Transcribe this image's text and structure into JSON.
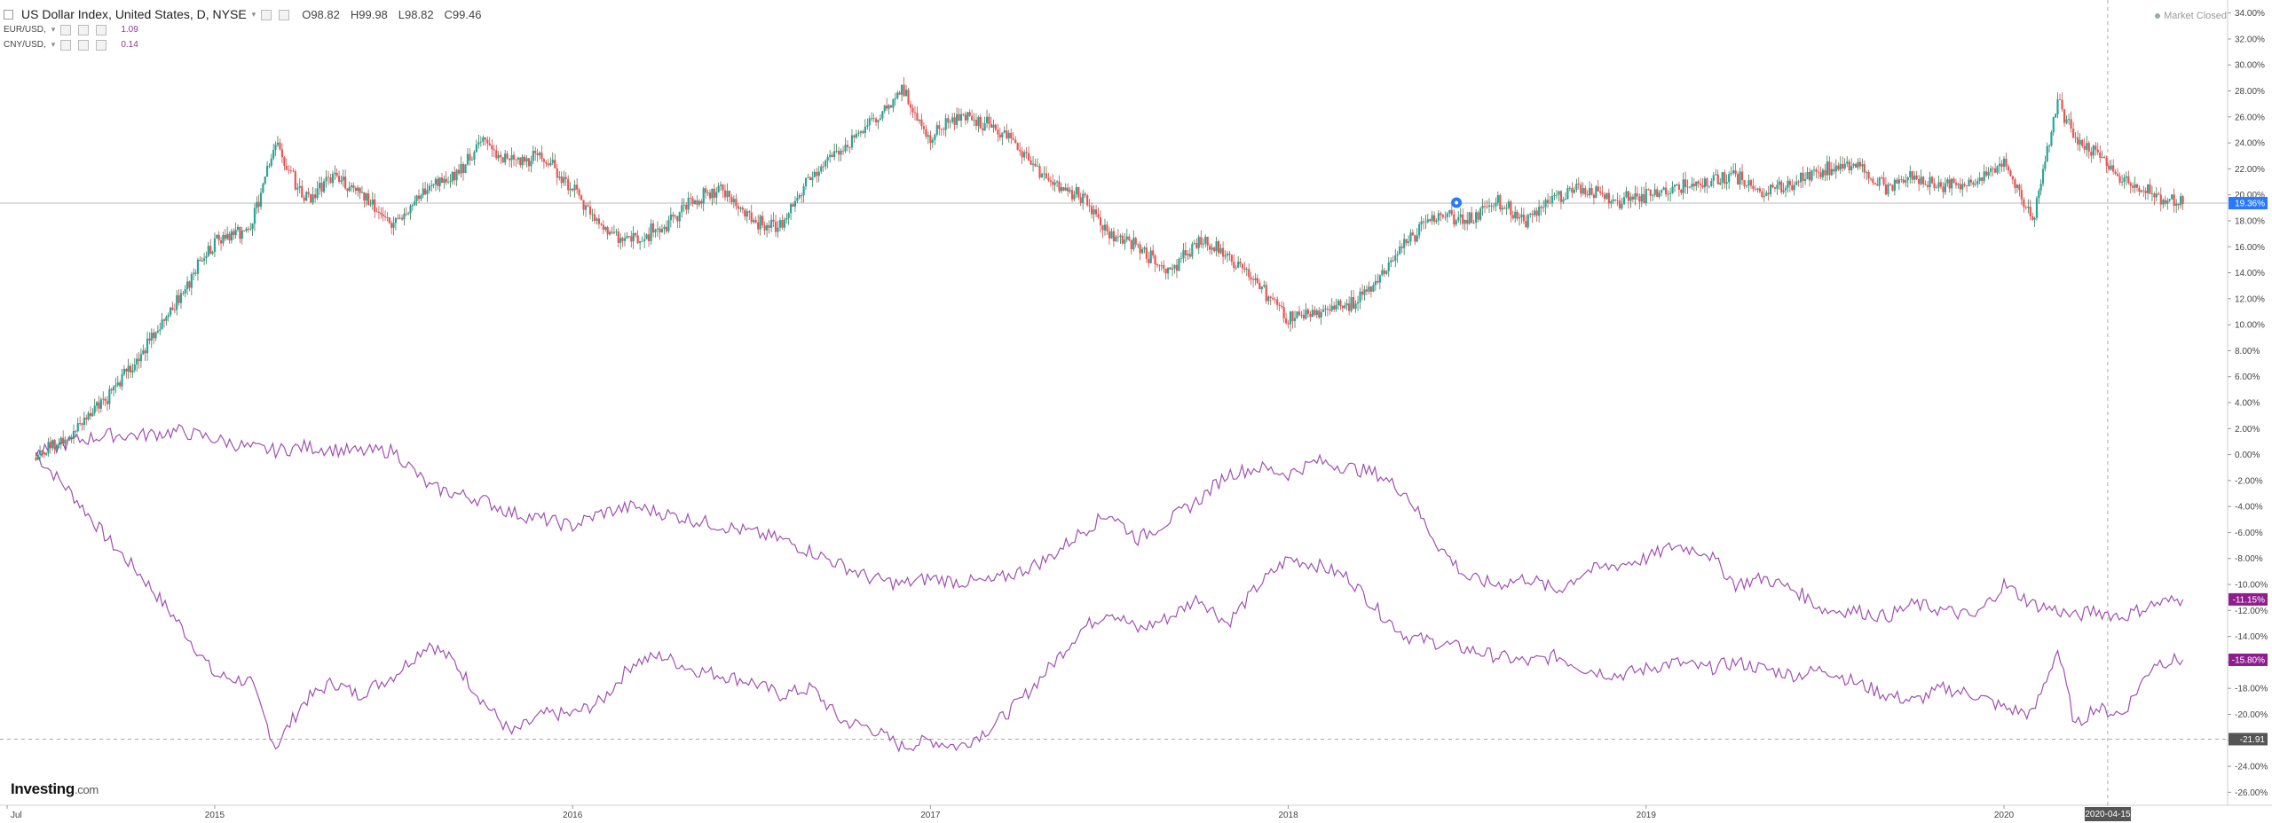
{
  "legend": {
    "main": {
      "title": "US Dollar Index, United States, D, NYSE",
      "o": "O98.82",
      "h": "H99.98",
      "l": "L98.82",
      "c": "C99.46"
    },
    "series2": {
      "name": "EUR/USD,",
      "value": "1.09"
    },
    "series3": {
      "name": "CNY/USD,",
      "value": "0.14"
    }
  },
  "market_status": "Market Closed",
  "logo": {
    "bold": "Investing",
    "suffix": ".com"
  },
  "colors": {
    "up": "#26a69a",
    "down": "#ef5350",
    "line_purple": "#a050b0",
    "badge_blue": "#2979ff",
    "badge_purple": "#8e1e8e",
    "badge_gray": "#555555",
    "grid": "#e6e6e6"
  },
  "chart_data": {
    "type": "line",
    "x_axis": {
      "ticks": [
        "Jul",
        "2015",
        "2016",
        "2017",
        "2018",
        "2019",
        "2020"
      ],
      "crosshair_label": "2020-04-15"
    },
    "y_axis": {
      "unit": "%",
      "range": [
        -27,
        35
      ],
      "ticks": [
        "34.00%",
        "32.00%",
        "30.00%",
        "28.00%",
        "26.00%",
        "24.00%",
        "22.00%",
        "20.00%",
        "18.00%",
        "16.00%",
        "14.00%",
        "12.00%",
        "10.00%",
        "8.00%",
        "6.00%",
        "4.00%",
        "2.00%",
        "0.00%",
        "-2.00%",
        "-4.00%",
        "-6.00%",
        "-8.00%",
        "-10.00%",
        "-12.00%",
        "-14.00%",
        "-16.00%",
        "-18.00%",
        "-20.00%",
        "-22.00%",
        "-24.00%",
        "-26.00%"
      ]
    },
    "last_value_labels": [
      "19.36%",
      "-11.15%",
      "-15.80%",
      "-21.91"
    ],
    "series": [
      {
        "name": "US Dollar Index",
        "style": "candles",
        "x": [
          2014.5,
          2014.6,
          2014.7,
          2014.8,
          2014.9,
          2015.0,
          2015.1,
          2015.17,
          2015.25,
          2015.33,
          2015.4,
          2015.5,
          2015.6,
          2015.67,
          2015.75,
          2015.83,
          2015.92,
          2016.0,
          2016.08,
          2016.17,
          2016.25,
          2016.33,
          2016.42,
          2016.5,
          2016.58,
          2016.67,
          2016.75,
          2016.83,
          2016.92,
          2017.0,
          2017.08,
          2017.17,
          2017.25,
          2017.33,
          2017.42,
          2017.5,
          2017.58,
          2017.67,
          2017.75,
          2017.83,
          2017.92,
          2018.0,
          2018.08,
          2018.17,
          2018.25,
          2018.33,
          2018.42,
          2018.5,
          2018.58,
          2018.67,
          2018.75,
          2018.83,
          2018.92,
          2019.0,
          2019.08,
          2019.17,
          2019.25,
          2019.33,
          2019.42,
          2019.5,
          2019.58,
          2019.67,
          2019.75,
          2019.83,
          2019.92,
          2020.0,
          2020.08,
          2020.15,
          2020.2,
          2020.25,
          2020.33,
          2020.42,
          2020.5
        ],
        "values": [
          0.0,
          1.5,
          4.5,
          8.0,
          12.0,
          16.5,
          17.5,
          24.0,
          19.5,
          21.5,
          20.5,
          17.5,
          21.0,
          21.5,
          24.0,
          22.5,
          23.0,
          20.5,
          17.5,
          16.5,
          17.5,
          19.5,
          20.5,
          18.0,
          17.5,
          21.5,
          23.5,
          25.5,
          28.0,
          24.5,
          26.0,
          25.5,
          23.5,
          21.0,
          20.0,
          17.0,
          16.0,
          14.0,
          16.5,
          15.5,
          13.0,
          10.5,
          11.0,
          11.5,
          13.5,
          16.5,
          18.5,
          18.0,
          19.5,
          18.0,
          20.0,
          20.5,
          19.5,
          20.0,
          20.5,
          21.0,
          21.5,
          20.0,
          21.0,
          22.0,
          22.5,
          20.5,
          21.5,
          20.5,
          21.0,
          22.5,
          18.0,
          27.5,
          24.0,
          23.5,
          21.0,
          20.0,
          19.36
        ]
      },
      {
        "name": "EUR/USD",
        "style": "line",
        "x": [
          2014.5,
          2014.6,
          2014.7,
          2014.8,
          2014.9,
          2015.0,
          2015.1,
          2015.17,
          2015.25,
          2015.33,
          2015.4,
          2015.5,
          2015.6,
          2015.67,
          2015.75,
          2015.83,
          2015.92,
          2016.0,
          2016.08,
          2016.17,
          2016.25,
          2016.33,
          2016.42,
          2016.5,
          2016.58,
          2016.67,
          2016.75,
          2016.83,
          2016.92,
          2017.0,
          2017.08,
          2017.17,
          2017.25,
          2017.33,
          2017.42,
          2017.5,
          2017.58,
          2017.67,
          2017.75,
          2017.83,
          2017.92,
          2018.0,
          2018.08,
          2018.17,
          2018.25,
          2018.33,
          2018.42,
          2018.5,
          2018.58,
          2018.67,
          2018.75,
          2018.83,
          2018.92,
          2019.0,
          2019.08,
          2019.17,
          2019.25,
          2019.33,
          2019.42,
          2019.5,
          2019.58,
          2019.67,
          2019.75,
          2019.83,
          2019.92,
          2020.0,
          2020.08,
          2020.15,
          2020.2,
          2020.25,
          2020.33,
          2020.42,
          2020.5
        ],
        "values": [
          0.0,
          -3.0,
          -6.5,
          -9.5,
          -13.0,
          -17.0,
          -17.5,
          -22.5,
          -19.0,
          -17.5,
          -18.5,
          -17.0,
          -14.5,
          -16.0,
          -19.0,
          -21.5,
          -20.0,
          -20.0,
          -19.0,
          -16.0,
          -15.5,
          -16.5,
          -17.0,
          -17.5,
          -18.5,
          -18.0,
          -20.5,
          -21.0,
          -22.5,
          -22.0,
          -22.5,
          -21.0,
          -19.0,
          -16.5,
          -13.5,
          -12.0,
          -13.5,
          -12.5,
          -11.0,
          -13.0,
          -10.0,
          -8.0,
          -8.5,
          -9.5,
          -12.0,
          -14.0,
          -14.5,
          -15.0,
          -15.5,
          -16.0,
          -15.5,
          -16.5,
          -17.0,
          -16.5,
          -16.0,
          -16.5,
          -16.0,
          -16.5,
          -17.0,
          -16.5,
          -17.5,
          -18.5,
          -19.0,
          -18.0,
          -18.5,
          -19.5,
          -20.0,
          -15.0,
          -21.0,
          -19.5,
          -20.0,
          -16.0,
          -15.8
        ]
      },
      {
        "name": "CNY/USD",
        "style": "line",
        "x": [
          2014.5,
          2014.6,
          2014.7,
          2014.8,
          2014.9,
          2015.0,
          2015.1,
          2015.17,
          2015.25,
          2015.33,
          2015.4,
          2015.5,
          2015.6,
          2015.67,
          2015.75,
          2015.83,
          2015.92,
          2016.0,
          2016.08,
          2016.17,
          2016.25,
          2016.33,
          2016.42,
          2016.5,
          2016.58,
          2016.67,
          2016.75,
          2016.83,
          2016.92,
          2017.0,
          2017.08,
          2017.17,
          2017.25,
          2017.33,
          2017.42,
          2017.5,
          2017.58,
          2017.67,
          2017.75,
          2017.83,
          2017.92,
          2018.0,
          2018.08,
          2018.17,
          2018.25,
          2018.33,
          2018.42,
          2018.5,
          2018.58,
          2018.67,
          2018.75,
          2018.83,
          2018.92,
          2019.0,
          2019.08,
          2019.17,
          2019.25,
          2019.33,
          2019.42,
          2019.5,
          2019.58,
          2019.67,
          2019.75,
          2019.83,
          2019.92,
          2020.0,
          2020.08,
          2020.15,
          2020.2,
          2020.25,
          2020.33,
          2020.42,
          2020.5
        ],
        "values": [
          0.0,
          1.0,
          1.5,
          1.5,
          1.8,
          1.2,
          0.5,
          0.3,
          0.6,
          0.4,
          0.2,
          0.3,
          -2.5,
          -3.0,
          -3.5,
          -4.5,
          -5.0,
          -5.5,
          -4.5,
          -4.0,
          -4.5,
          -5.0,
          -5.5,
          -6.0,
          -6.5,
          -7.5,
          -8.5,
          -9.5,
          -10.0,
          -9.5,
          -9.8,
          -9.8,
          -9.0,
          -8.0,
          -6.0,
          -4.5,
          -6.5,
          -5.0,
          -3.5,
          -1.5,
          -1.0,
          -1.5,
          -0.5,
          -1.0,
          -1.5,
          -3.0,
          -7.0,
          -9.5,
          -10.0,
          -9.5,
          -10.5,
          -9.0,
          -8.5,
          -8.0,
          -7.0,
          -7.5,
          -10.0,
          -9.5,
          -10.5,
          -12.0,
          -12.0,
          -12.5,
          -11.5,
          -12.0,
          -12.5,
          -10.0,
          -11.5,
          -12.0,
          -12.5,
          -12.0,
          -12.5,
          -11.5,
          -11.15
        ]
      }
    ]
  }
}
